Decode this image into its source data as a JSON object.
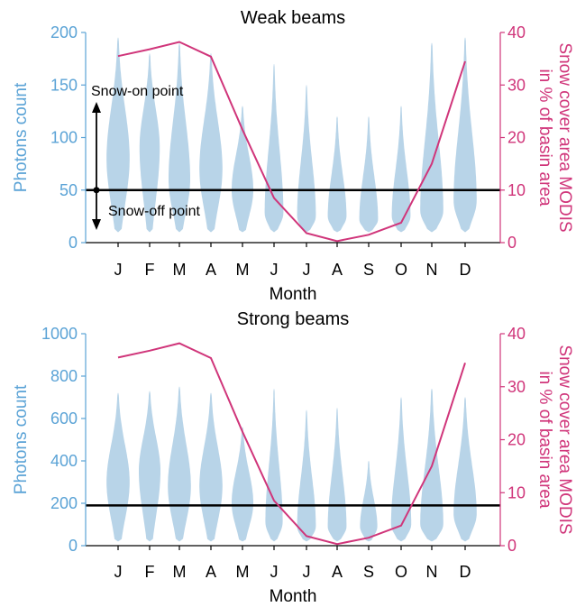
{
  "colors": {
    "violin": "#b8d4e8",
    "left_axis": "#5ba3d6",
    "right_axis": "#d0357a",
    "threshold": "#000000"
  },
  "chart_data": [
    {
      "type": "violin",
      "title": "Weak beams",
      "xlabel": "Month",
      "ylabel": "Photons count",
      "y2label_line1": "Snow cover area MODIS",
      "y2label_line2": "in % of basin area",
      "categories": [
        "J",
        "F",
        "M",
        "A",
        "M",
        "J",
        "J",
        "A",
        "S",
        "O",
        "N",
        "D"
      ],
      "ylim": [
        0,
        200
      ],
      "yticks": [
        "0",
        "50",
        "100",
        "150",
        "200"
      ],
      "y2lim": [
        0,
        40
      ],
      "y2ticks": [
        "0",
        "10",
        "20",
        "30",
        "40"
      ],
      "threshold": 50,
      "annotations": {
        "snow_on": "Snow-on point",
        "snow_off": "Snow-off point"
      },
      "distributions": [
        {
          "min": 10,
          "max": 195,
          "mode": 80,
          "width": 0.8
        },
        {
          "min": 10,
          "max": 180,
          "mode": 90,
          "width": 0.7
        },
        {
          "min": 10,
          "max": 190,
          "mode": 60,
          "width": 0.75
        },
        {
          "min": 10,
          "max": 180,
          "mode": 70,
          "width": 0.8
        },
        {
          "min": 10,
          "max": 130,
          "mode": 50,
          "width": 0.75
        },
        {
          "min": 10,
          "max": 170,
          "mode": 28,
          "width": 0.65
        },
        {
          "min": 10,
          "max": 150,
          "mode": 25,
          "width": 0.65
        },
        {
          "min": 10,
          "max": 120,
          "mode": 25,
          "width": 0.65
        },
        {
          "min": 10,
          "max": 120,
          "mode": 22,
          "width": 0.65
        },
        {
          "min": 10,
          "max": 130,
          "mode": 25,
          "width": 0.65
        },
        {
          "min": 10,
          "max": 190,
          "mode": 30,
          "width": 0.8
        },
        {
          "min": 10,
          "max": 195,
          "mode": 40,
          "width": 0.8
        }
      ],
      "snow_cover": {
        "name": "Snow cover area MODIS",
        "values": [
          35.5,
          36.8,
          38.2,
          35.4,
          21.5,
          8.5,
          1.8,
          0.3,
          1.5,
          3.8,
          15.0,
          34.5
        ]
      }
    },
    {
      "type": "violin",
      "title": "Strong beams",
      "xlabel": "Month",
      "ylabel": "Photons count",
      "y2label_line1": "Snow cover area MODIS",
      "y2label_line2": "in % of basin area",
      "categories": [
        "J",
        "F",
        "M",
        "A",
        "M",
        "J",
        "J",
        "A",
        "S",
        "O",
        "N",
        "D"
      ],
      "ylim": [
        0,
        1000
      ],
      "yticks": [
        "0",
        "200",
        "400",
        "600",
        "800",
        "1000"
      ],
      "y2lim": [
        0,
        40
      ],
      "y2ticks": [
        "0",
        "10",
        "20",
        "30",
        "40"
      ],
      "threshold": 190,
      "distributions": [
        {
          "min": 20,
          "max": 720,
          "mode": 300,
          "width": 0.8
        },
        {
          "min": 20,
          "max": 730,
          "mode": 350,
          "width": 0.75
        },
        {
          "min": 20,
          "max": 750,
          "mode": 280,
          "width": 0.8
        },
        {
          "min": 20,
          "max": 720,
          "mode": 280,
          "width": 0.8
        },
        {
          "min": 20,
          "max": 560,
          "mode": 200,
          "width": 0.75
        },
        {
          "min": 20,
          "max": 740,
          "mode": 110,
          "width": 0.6
        },
        {
          "min": 20,
          "max": 640,
          "mode": 90,
          "width": 0.65
        },
        {
          "min": 20,
          "max": 650,
          "mode": 90,
          "width": 0.65
        },
        {
          "min": 20,
          "max": 400,
          "mode": 90,
          "width": 0.6
        },
        {
          "min": 20,
          "max": 700,
          "mode": 100,
          "width": 0.7
        },
        {
          "min": 20,
          "max": 740,
          "mode": 100,
          "width": 0.8
        },
        {
          "min": 20,
          "max": 700,
          "mode": 150,
          "width": 0.8
        }
      ],
      "snow_cover": {
        "name": "Snow cover area MODIS",
        "values": [
          35.5,
          36.8,
          38.2,
          35.4,
          21.5,
          8.5,
          1.8,
          0.3,
          1.5,
          3.8,
          15.0,
          34.5
        ]
      }
    }
  ]
}
